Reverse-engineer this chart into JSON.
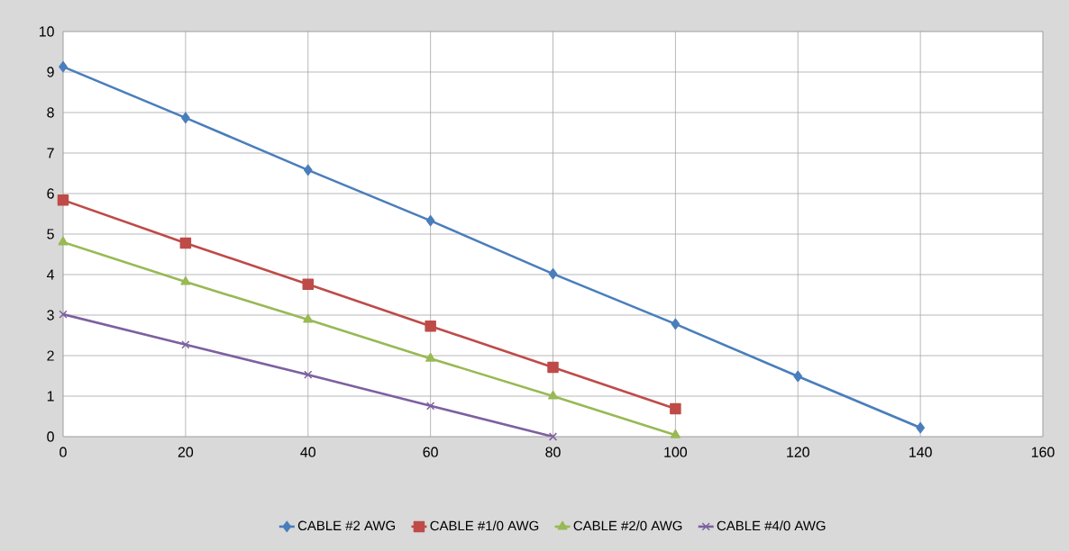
{
  "chart_data": {
    "type": "line",
    "x": [
      0,
      20,
      40,
      60,
      80,
      100,
      120,
      140
    ],
    "series": [
      {
        "name": "CABLE #2 AWG",
        "color": "#4a7ebb",
        "marker": "diamond",
        "values": [
          9.13,
          7.87,
          6.58,
          5.33,
          4.02,
          2.78,
          1.49,
          0.22
        ]
      },
      {
        "name": "CABLE #1/0 AWG",
        "color": "#be4b48",
        "marker": "square",
        "values": [
          5.84,
          4.78,
          3.76,
          2.73,
          1.71,
          0.69,
          null,
          null
        ]
      },
      {
        "name": "CABLE #2/0 AWG",
        "color": "#98b954",
        "marker": "triangle",
        "values": [
          4.8,
          3.82,
          2.89,
          1.93,
          1.0,
          0.04,
          null,
          null
        ]
      },
      {
        "name": "CABLE #4/0 AWG",
        "color": "#7d60a0",
        "marker": "cross",
        "values": [
          3.02,
          2.27,
          1.53,
          0.76,
          0.0,
          null,
          null,
          null
        ]
      }
    ],
    "xlim": [
      0,
      160
    ],
    "xticks": [
      0,
      20,
      40,
      60,
      80,
      100,
      120,
      140,
      160
    ],
    "ylim": [
      0,
      10
    ],
    "yticks": [
      0,
      1,
      2,
      3,
      4,
      5,
      6,
      7,
      8,
      9,
      10
    ],
    "grid": true,
    "legend": "bottom",
    "line_style": "solid"
  }
}
